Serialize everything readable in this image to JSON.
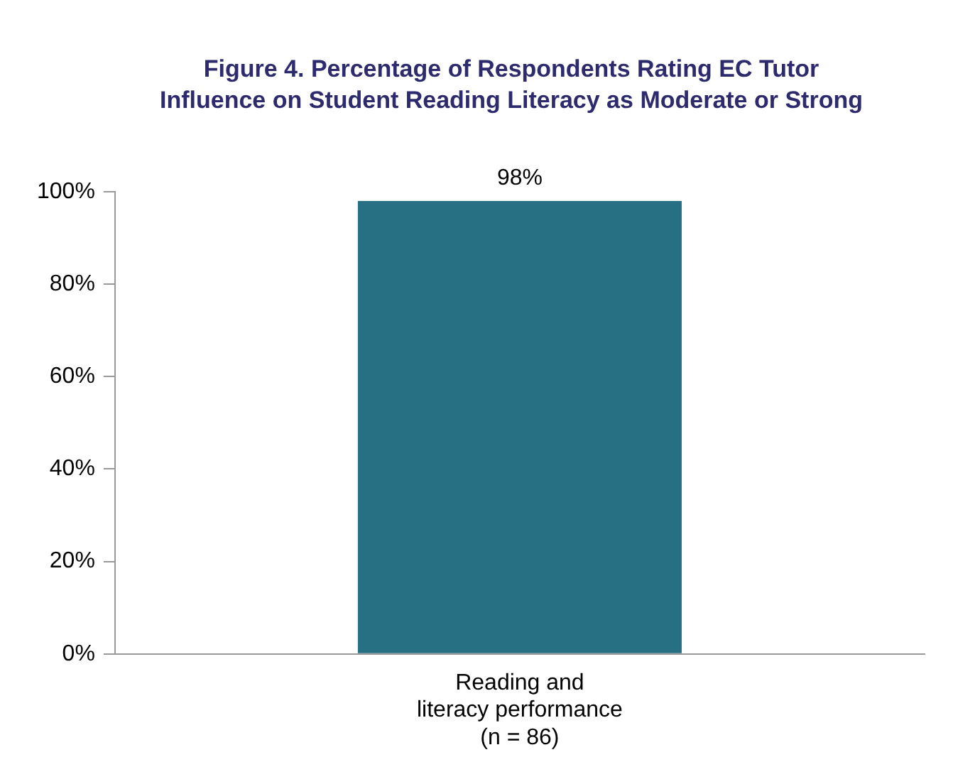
{
  "chart_data": {
    "type": "bar",
    "title": "Figure 4. Percentage of Respondents Rating EC Tutor Influence on Student Reading Literacy as Moderate or Strong",
    "categories": [
      "Reading and\nliteracy performance\n(n = 86)"
    ],
    "values": [
      98
    ],
    "value_labels": [
      "98%"
    ],
    "color": "#277083",
    "ylim": [
      0,
      100
    ],
    "yticks": [
      {
        "value": 0,
        "label": "0%"
      },
      {
        "value": 20,
        "label": "20%"
      },
      {
        "value": 40,
        "label": "40%"
      },
      {
        "value": 60,
        "label": "60%"
      },
      {
        "value": 80,
        "label": "80%"
      },
      {
        "value": 100,
        "label": "100%"
      }
    ],
    "grid": false,
    "legend": false
  }
}
